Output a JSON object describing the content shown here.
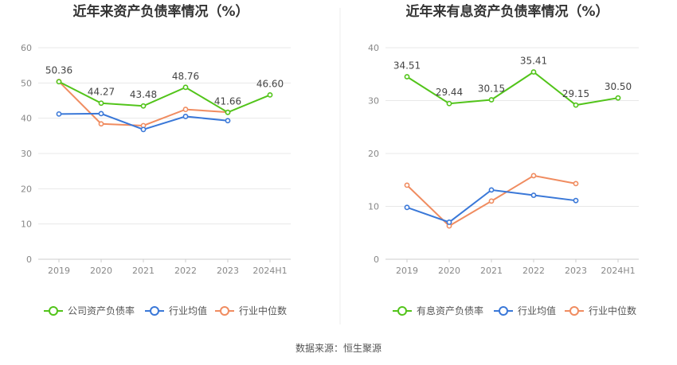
{
  "chart_data": [
    {
      "type": "line",
      "title": "近年来资产负债率情况（%）",
      "categories": [
        "2019",
        "2020",
        "2021",
        "2022",
        "2023",
        "2024H1"
      ],
      "ylim": [
        0,
        60
      ],
      "yticks": [
        "0",
        "10",
        "20",
        "30",
        "40",
        "50",
        "60"
      ],
      "grid": true,
      "legend_position": "bottom",
      "series": [
        {
          "name": "公司资产负债率",
          "color": "#52c41a",
          "values": [
            50.36,
            44.27,
            43.48,
            48.76,
            41.66,
            46.6
          ],
          "labels": [
            "50.36",
            "44.27",
            "43.48",
            "48.76",
            "41.66",
            "46.60"
          ]
        },
        {
          "name": "行业均值",
          "color": "#3a78d8",
          "values": [
            41.2,
            41.3,
            36.8,
            40.5,
            39.3,
            null
          ]
        },
        {
          "name": "行业中位数",
          "color": "#f08c60",
          "values": [
            50.4,
            38.4,
            37.9,
            42.5,
            41.7,
            null
          ]
        }
      ]
    },
    {
      "type": "line",
      "title": "近年来有息资产负债率情况（%）",
      "categories": [
        "2019",
        "2020",
        "2021",
        "2022",
        "2023",
        "2024H1"
      ],
      "ylim": [
        0,
        40
      ],
      "yticks": [
        "0",
        "10",
        "20",
        "30",
        "40"
      ],
      "grid": true,
      "legend_position": "bottom",
      "series": [
        {
          "name": "有息资产负债率",
          "color": "#52c41a",
          "values": [
            34.51,
            29.44,
            30.15,
            35.41,
            29.15,
            30.5
          ],
          "labels": [
            "34.51",
            "29.44",
            "30.15",
            "35.41",
            "29.15",
            "30.50"
          ]
        },
        {
          "name": "行业均值",
          "color": "#3a78d8",
          "values": [
            9.8,
            7.0,
            13.1,
            12.1,
            11.1,
            null
          ]
        },
        {
          "name": "行业中位数",
          "color": "#f08c60",
          "values": [
            14.0,
            6.3,
            11.0,
            15.8,
            14.3,
            null
          ]
        }
      ]
    }
  ],
  "footer": {
    "source": "数据来源：恒生聚源"
  }
}
